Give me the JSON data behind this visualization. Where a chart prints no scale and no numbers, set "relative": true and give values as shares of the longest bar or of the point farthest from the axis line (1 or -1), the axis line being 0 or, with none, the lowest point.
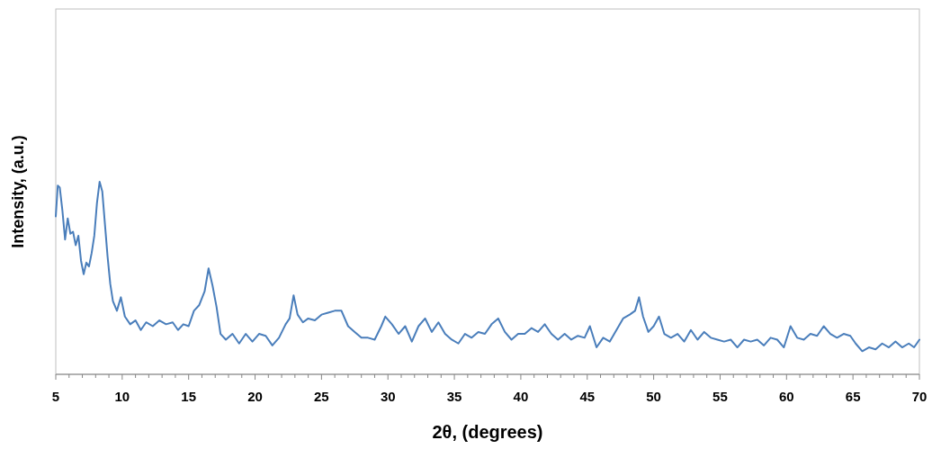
{
  "chart_data": {
    "type": "line",
    "xlabel": "2θ, (degrees)",
    "ylabel": "Intensity, (a.u.)",
    "relative": true,
    "xlim": [
      5,
      70
    ],
    "xticks": [
      5,
      {
        "value": 6,
        "label": null
      },
      {
        "value": 7,
        "label": null
      },
      {
        "value": 8,
        "label": null
      },
      {
        "value": 9,
        "label": null
      },
      10,
      {
        "value": 11,
        "label": null
      },
      {
        "value": 12,
        "label": null
      },
      {
        "value": 13,
        "label": null
      },
      {
        "value": 14,
        "label": null
      },
      15,
      {
        "value": 16,
        "label": null
      },
      {
        "value": 17,
        "label": null
      },
      {
        "value": 18,
        "label": null
      },
      {
        "value": 19,
        "label": null
      },
      20,
      {
        "value": 21,
        "label": null
      },
      {
        "value": 22,
        "label": null
      },
      {
        "value": 23,
        "label": null
      },
      {
        "value": 24,
        "label": null
      },
      25,
      {
        "value": 26,
        "label": null
      },
      {
        "value": 27,
        "label": null
      },
      {
        "value": 28,
        "label": null
      },
      {
        "value": 29,
        "label": null
      },
      30,
      {
        "value": 31,
        "label": null
      },
      {
        "value": 32,
        "label": null
      },
      {
        "value": 33,
        "label": null
      },
      {
        "value": 34,
        "label": null
      },
      35,
      {
        "value": 36,
        "label": null
      },
      {
        "value": 37,
        "label": null
      },
      {
        "value": 38,
        "label": null
      },
      {
        "value": 39,
        "label": null
      },
      40,
      {
        "value": 41,
        "label": null
      },
      {
        "value": 42,
        "label": null
      },
      {
        "value": 43,
        "label": null
      },
      {
        "value": 44,
        "label": null
      },
      45,
      {
        "value": 46,
        "label": null
      },
      {
        "value": 47,
        "label": null
      },
      {
        "value": 48,
        "label": null
      },
      {
        "value": 49,
        "label": null
      },
      50,
      {
        "value": 51,
        "label": null
      },
      {
        "value": 52,
        "label": null
      },
      {
        "value": 53,
        "label": null
      },
      {
        "value": 54,
        "label": null
      },
      55,
      {
        "value": 56,
        "label": null
      },
      {
        "value": 57,
        "label": null
      },
      {
        "value": 58,
        "label": null
      },
      {
        "value": 59,
        "label": null
      },
      60,
      {
        "value": 61,
        "label": null
      },
      {
        "value": 62,
        "label": null
      },
      {
        "value": 63,
        "label": null
      },
      {
        "value": 64,
        "label": null
      },
      65,
      {
        "value": 66,
        "label": null
      },
      {
        "value": 67,
        "label": null
      },
      {
        "value": 68,
        "label": null
      },
      {
        "value": 69,
        "label": null
      },
      70
    ],
    "grid": false,
    "marker": "none",
    "line_style": "solid",
    "series": [
      {
        "color": "#4a7ebb",
        "x": [
          5.0,
          5.15,
          5.3,
          5.5,
          5.7,
          5.9,
          6.1,
          6.3,
          6.5,
          6.7,
          6.9,
          7.1,
          7.3,
          7.5,
          7.7,
          7.9,
          8.1,
          8.3,
          8.5,
          8.7,
          8.9,
          9.1,
          9.3,
          9.6,
          9.9,
          10.2,
          10.6,
          11.0,
          11.4,
          11.8,
          12.3,
          12.8,
          13.3,
          13.8,
          14.2,
          14.6,
          15.0,
          15.4,
          15.8,
          16.2,
          16.5,
          16.8,
          17.1,
          17.4,
          17.8,
          18.3,
          18.8,
          19.3,
          19.8,
          20.3,
          20.8,
          21.3,
          21.8,
          22.3,
          22.6,
          22.9,
          23.2,
          23.6,
          24.0,
          24.5,
          25.0,
          25.5,
          26.0,
          26.5,
          27.0,
          27.5,
          28.0,
          28.5,
          29.0,
          29.5,
          29.8,
          30.3,
          30.8,
          31.3,
          31.8,
          32.3,
          32.8,
          33.3,
          33.8,
          34.3,
          34.8,
          35.3,
          35.8,
          36.3,
          36.8,
          37.3,
          37.8,
          38.3,
          38.8,
          39.3,
          39.8,
          40.3,
          40.8,
          41.3,
          41.8,
          42.3,
          42.8,
          43.3,
          43.8,
          44.3,
          44.8,
          45.2,
          45.7,
          46.2,
          46.7,
          47.2,
          47.7,
          48.2,
          48.6,
          48.9,
          49.2,
          49.6,
          50.0,
          50.4,
          50.8,
          51.3,
          51.8,
          52.3,
          52.8,
          53.3,
          53.8,
          54.3,
          54.8,
          55.3,
          55.8,
          56.3,
          56.8,
          57.3,
          57.8,
          58.3,
          58.8,
          59.3,
          59.8,
          60.3,
          60.8,
          61.3,
          61.8,
          62.3,
          62.8,
          63.3,
          63.8,
          64.3,
          64.8,
          65.2,
          65.7,
          66.2,
          66.7,
          67.2,
          67.7,
          68.2,
          68.7,
          69.2,
          69.6,
          70.0
        ],
        "values": [
          0.82,
          0.98,
          0.97,
          0.85,
          0.7,
          0.81,
          0.73,
          0.74,
          0.67,
          0.72,
          0.59,
          0.52,
          0.58,
          0.56,
          0.63,
          0.72,
          0.89,
          1,
          0.95,
          0.78,
          0.61,
          0.47,
          0.38,
          0.33,
          0.4,
          0.3,
          0.26,
          0.28,
          0.23,
          0.27,
          0.25,
          0.28,
          0.26,
          0.27,
          0.23,
          0.26,
          0.25,
          0.33,
          0.36,
          0.43,
          0.55,
          0.46,
          0.35,
          0.21,
          0.18,
          0.21,
          0.16,
          0.21,
          0.17,
          0.21,
          0.2,
          0.15,
          0.19,
          0.26,
          0.29,
          0.41,
          0.31,
          0.27,
          0.29,
          0.28,
          0.31,
          0.32,
          0.33,
          0.33,
          0.25,
          0.22,
          0.19,
          0.19,
          0.18,
          0.25,
          0.3,
          0.26,
          0.21,
          0.25,
          0.17,
          0.25,
          0.29,
          0.22,
          0.27,
          0.21,
          0.18,
          0.16,
          0.21,
          0.19,
          0.22,
          0.21,
          0.26,
          0.29,
          0.22,
          0.18,
          0.21,
          0.21,
          0.24,
          0.22,
          0.26,
          0.21,
          0.18,
          0.21,
          0.18,
          0.2,
          0.19,
          0.25,
          0.14,
          0.19,
          0.17,
          0.23,
          0.29,
          0.31,
          0.33,
          0.4,
          0.3,
          0.22,
          0.25,
          0.3,
          0.21,
          0.19,
          0.21,
          0.17,
          0.23,
          0.18,
          0.22,
          0.19,
          0.18,
          0.17,
          0.18,
          0.14,
          0.18,
          0.17,
          0.18,
          0.15,
          0.19,
          0.18,
          0.14,
          0.25,
          0.19,
          0.18,
          0.21,
          0.2,
          0.25,
          0.21,
          0.19,
          0.21,
          0.2,
          0.16,
          0.12,
          0.14,
          0.13,
          0.16,
          0.14,
          0.17,
          0.14,
          0.16,
          0.14,
          0.18
        ]
      }
    ]
  }
}
